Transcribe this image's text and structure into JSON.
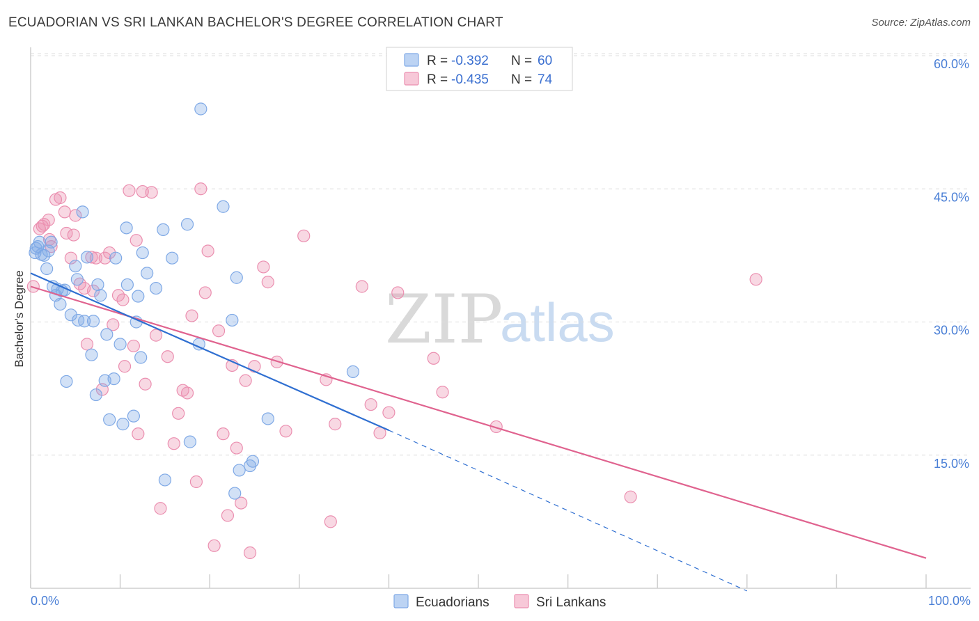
{
  "title": "ECUADORIAN VS SRI LANKAN BACHELOR'S DEGREE CORRELATION CHART",
  "source": "Source: ZipAtlas.com",
  "watermark": {
    "zip": "ZIP",
    "atlas": "atlas"
  },
  "legend": {
    "rows": [
      {
        "r_label": "R =",
        "r_value": "-0.392",
        "n_label": "N =",
        "n_value": "60",
        "color": "#7fa9e6"
      },
      {
        "r_label": "R =",
        "r_value": "-0.435",
        "n_label": "N =",
        "n_value": "74",
        "color": "#eb8fb0"
      }
    ]
  },
  "bottom_legend": [
    "Ecuadorians",
    "Sri Lankans"
  ],
  "chart_data": {
    "type": "scatter",
    "xlabel": "",
    "ylabel": "Bachelor's Degree",
    "xlim": [
      0,
      100
    ],
    "ylim": [
      0,
      61
    ],
    "x_tick_labels": [
      "0.0%",
      "100.0%"
    ],
    "y_ticks": [
      15,
      30,
      45,
      60
    ],
    "y_tick_labels": [
      "15.0%",
      "30.0%",
      "45.0%",
      "60.0%"
    ],
    "colors": {
      "ecuadorians": "#7fa9e6",
      "sri_lankans": "#eb8fb0",
      "eco_line": "#2f6fd1",
      "sri_line": "#e0638f"
    },
    "series": [
      {
        "name": "Ecuadorians",
        "trend": {
          "x0": 0,
          "y0": 35.5,
          "x1": 40,
          "y1": 17.8,
          "dash_to_x": 80,
          "dash_to_y": -0.3
        },
        "points": [
          [
            0.5,
            37.8
          ],
          [
            0.8,
            38.5
          ],
          [
            1,
            39.0
          ],
          [
            1.5,
            37.5
          ],
          [
            1.8,
            36.0
          ],
          [
            2,
            38.0
          ],
          [
            2.3,
            39.0
          ],
          [
            2.5,
            34.0
          ],
          [
            2.8,
            33.0
          ],
          [
            3,
            33.7
          ],
          [
            3.3,
            32.0
          ],
          [
            3.5,
            33.5
          ],
          [
            4,
            23.3
          ],
          [
            4.5,
            30.8
          ],
          [
            5,
            36.3
          ],
          [
            5.3,
            30.2
          ],
          [
            5.8,
            42.4
          ],
          [
            6,
            30.1
          ],
          [
            6.3,
            37.3
          ],
          [
            6.8,
            26.3
          ],
          [
            7,
            30.1
          ],
          [
            7.3,
            21.8
          ],
          [
            7.5,
            34.2
          ],
          [
            7.8,
            33.0
          ],
          [
            8.3,
            23.4
          ],
          [
            8.5,
            28.6
          ],
          [
            8.8,
            19.0
          ],
          [
            9.3,
            23.6
          ],
          [
            9.5,
            37.2
          ],
          [
            10,
            27.5
          ],
          [
            10.3,
            18.5
          ],
          [
            10.7,
            40.6
          ],
          [
            10.8,
            34.2
          ],
          [
            11.5,
            19.4
          ],
          [
            11.8,
            30.0
          ],
          [
            12,
            32.9
          ],
          [
            12.3,
            26.0
          ],
          [
            12.5,
            37.8
          ],
          [
            13,
            35.5
          ],
          [
            14,
            33.8
          ],
          [
            14.8,
            40.4
          ],
          [
            15,
            12.2
          ],
          [
            15.8,
            37.2
          ],
          [
            17.5,
            41.0
          ],
          [
            17.8,
            16.5
          ],
          [
            18.8,
            27.5
          ],
          [
            19,
            54.0
          ],
          [
            21.5,
            43.0
          ],
          [
            22.5,
            30.2
          ],
          [
            22.8,
            10.7
          ],
          [
            23,
            35.0
          ],
          [
            23.3,
            13.3
          ],
          [
            24.5,
            13.8
          ],
          [
            24.8,
            14.3
          ],
          [
            26.5,
            19.1
          ],
          [
            36,
            24.4
          ],
          [
            0.6,
            38.3
          ],
          [
            1.2,
            37.6
          ],
          [
            3.8,
            33.6
          ],
          [
            5.2,
            34.8
          ]
        ]
      },
      {
        "name": "Sri Lankans",
        "trend": {
          "x0": 0,
          "y0": 34.0,
          "x1": 100,
          "y1": 3.4
        },
        "points": [
          [
            0.3,
            34.0
          ],
          [
            1.0,
            40.5
          ],
          [
            1.5,
            41.0
          ],
          [
            2.0,
            41.5
          ],
          [
            2.3,
            38.5
          ],
          [
            2.8,
            43.8
          ],
          [
            3.3,
            44.0
          ],
          [
            3.8,
            42.4
          ],
          [
            4,
            40.0
          ],
          [
            4.5,
            37.2
          ],
          [
            4.8,
            39.8
          ],
          [
            5,
            42.0
          ],
          [
            5.5,
            34.3
          ],
          [
            6,
            33.8
          ],
          [
            6.3,
            27.5
          ],
          [
            6.8,
            37.3
          ],
          [
            7,
            33.5
          ],
          [
            7.3,
            37.2
          ],
          [
            8,
            22.4
          ],
          [
            8.3,
            37.2
          ],
          [
            8.8,
            37.8
          ],
          [
            9.2,
            29.7
          ],
          [
            9.8,
            33.0
          ],
          [
            10.3,
            32.5
          ],
          [
            10.5,
            25.0
          ],
          [
            11,
            44.8
          ],
          [
            11.5,
            27.3
          ],
          [
            11.8,
            39.2
          ],
          [
            12,
            17.4
          ],
          [
            12.5,
            44.7
          ],
          [
            12.8,
            23.0
          ],
          [
            13.5,
            44.6
          ],
          [
            14,
            28.5
          ],
          [
            14.5,
            9.0
          ],
          [
            15.3,
            26.1
          ],
          [
            16,
            16.3
          ],
          [
            16.5,
            19.7
          ],
          [
            17,
            22.3
          ],
          [
            17.5,
            22.0
          ],
          [
            18,
            30.7
          ],
          [
            18.5,
            12.0
          ],
          [
            19,
            45.0
          ],
          [
            19.5,
            33.3
          ],
          [
            19.8,
            38.0
          ],
          [
            20.5,
            4.8
          ],
          [
            21,
            29.0
          ],
          [
            21.5,
            17.4
          ],
          [
            22,
            8.2
          ],
          [
            22.5,
            25.1
          ],
          [
            23,
            15.8
          ],
          [
            23.5,
            9.6
          ],
          [
            24,
            23.4
          ],
          [
            24.5,
            4.0
          ],
          [
            25,
            25.0
          ],
          [
            26,
            36.2
          ],
          [
            26.5,
            34.5
          ],
          [
            27.5,
            25.5
          ],
          [
            28.5,
            17.7
          ],
          [
            30.5,
            39.7
          ],
          [
            33,
            23.5
          ],
          [
            34,
            18.5
          ],
          [
            33.5,
            7.5
          ],
          [
            37,
            34.0
          ],
          [
            38,
            20.7
          ],
          [
            39,
            17.5
          ],
          [
            40,
            19.8
          ],
          [
            41,
            33.3
          ],
          [
            45,
            25.9
          ],
          [
            46,
            22.1
          ],
          [
            52,
            18.2
          ],
          [
            67,
            10.3
          ],
          [
            81,
            34.8
          ],
          [
            1.3,
            40.8
          ],
          [
            2.1,
            39.3
          ]
        ]
      }
    ]
  }
}
